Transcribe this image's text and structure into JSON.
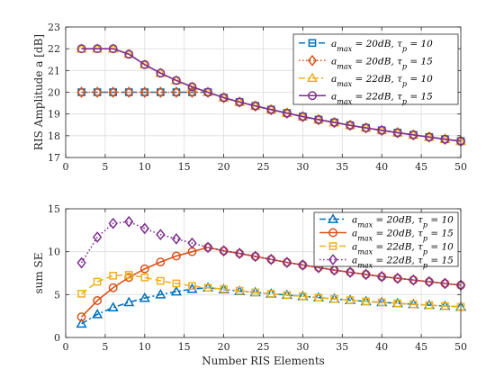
{
  "chart_data": [
    {
      "type": "line",
      "title": "",
      "xlabel": "",
      "ylabel": "RIS Amplitude a [dB]",
      "xlim": [
        0,
        50
      ],
      "ylim": [
        17,
        23
      ],
      "xticks": [
        0,
        5,
        10,
        15,
        20,
        25,
        30,
        35,
        40,
        45,
        50
      ],
      "yticks": [
        17,
        18,
        19,
        20,
        21,
        22,
        23
      ],
      "grid": true,
      "legend_position": "top-right",
      "x": [
        2,
        4,
        6,
        8,
        10,
        12,
        14,
        16,
        18,
        20,
        22,
        24,
        26,
        28,
        30,
        32,
        34,
        36,
        38,
        40,
        42,
        44,
        46,
        48,
        50
      ],
      "series": [
        {
          "name": "a_max = 20dB, τ_p = 10",
          "color": "#0072BD",
          "dash": "7 4",
          "marker": "square",
          "values": [
            20,
            20,
            20,
            20,
            20,
            20,
            20,
            20,
            20,
            19.75,
            19.55,
            19.37,
            19.2,
            19.04,
            18.88,
            18.74,
            18.61,
            18.48,
            18.36,
            18.25,
            18.14,
            18.04,
            17.94,
            17.84,
            17.75
          ]
        },
        {
          "name": "a_max = 20dB, τ_p = 15",
          "color": "#D95319",
          "dash": "1.5 2.5",
          "marker": "diamond",
          "values": [
            20,
            20,
            20,
            20,
            20,
            20,
            20,
            20,
            20,
            19.75,
            19.55,
            19.37,
            19.2,
            19.04,
            18.88,
            18.74,
            18.61,
            18.48,
            18.36,
            18.25,
            18.14,
            18.04,
            17.94,
            17.84,
            17.75
          ]
        },
        {
          "name": "a_max = 22dB, τ_p = 10",
          "color": "#EDB120",
          "dash": "7 3 2 3",
          "marker": "triangle",
          "values": [
            22,
            22,
            22,
            21.75,
            21.27,
            20.88,
            20.54,
            20.25,
            20,
            19.75,
            19.55,
            19.37,
            19.2,
            19.04,
            18.88,
            18.74,
            18.61,
            18.48,
            18.36,
            18.25,
            18.14,
            18.04,
            17.94,
            17.84,
            17.75
          ]
        },
        {
          "name": "a_max = 22dB, τ_p = 15",
          "color": "#7E2F8E",
          "dash": "",
          "marker": "circle",
          "values": [
            22,
            22,
            22,
            21.75,
            21.27,
            20.88,
            20.54,
            20.25,
            20,
            19.75,
            19.55,
            19.37,
            19.2,
            19.04,
            18.88,
            18.74,
            18.61,
            18.48,
            18.36,
            18.25,
            18.14,
            18.04,
            17.94,
            17.84,
            17.75
          ]
        }
      ]
    },
    {
      "type": "line",
      "title": "",
      "xlabel": "Number RIS Elements",
      "ylabel": "sum SE",
      "xlim": [
        0,
        50
      ],
      "ylim": [
        0,
        15
      ],
      "xticks": [
        0,
        5,
        10,
        15,
        20,
        25,
        30,
        35,
        40,
        45,
        50
      ],
      "yticks": [
        0,
        5,
        10,
        15
      ],
      "grid": true,
      "legend_position": "top-right",
      "x": [
        2,
        4,
        6,
        8,
        10,
        12,
        14,
        16,
        18,
        20,
        22,
        24,
        26,
        28,
        30,
        32,
        34,
        36,
        38,
        40,
        42,
        44,
        46,
        48,
        50
      ],
      "series": [
        {
          "name": "a_max = 20dB, τ_p = 10",
          "color": "#0072BD",
          "dash": "7 3 2 3",
          "marker": "triangle",
          "values": [
            1.6,
            2.7,
            3.5,
            4.1,
            4.6,
            5.0,
            5.35,
            5.65,
            5.8,
            5.6,
            5.4,
            5.25,
            5.1,
            4.95,
            4.8,
            4.65,
            4.5,
            4.35,
            4.2,
            4.1,
            3.98,
            3.87,
            3.77,
            3.67,
            3.57
          ]
        },
        {
          "name": "a_max = 20dB, τ_p = 15",
          "color": "#D95319",
          "dash": "",
          "marker": "circle",
          "values": [
            2.4,
            4.3,
            5.8,
            7.0,
            8.0,
            8.8,
            9.5,
            10.0,
            10.5,
            10.1,
            9.8,
            9.45,
            9.1,
            8.75,
            8.45,
            8.15,
            7.85,
            7.6,
            7.35,
            7.1,
            6.9,
            6.7,
            6.5,
            6.3,
            6.1
          ]
        },
        {
          "name": "a_max = 22dB, τ_p = 10",
          "color": "#EDB120",
          "dash": "7 4",
          "marker": "square",
          "values": [
            5.1,
            6.5,
            7.2,
            7.3,
            7.0,
            6.6,
            6.3,
            6.0,
            5.8,
            5.65,
            5.45,
            5.25,
            5.1,
            4.95,
            4.8,
            4.65,
            4.5,
            4.35,
            4.2,
            4.1,
            3.98,
            3.87,
            3.77,
            3.67,
            3.57
          ]
        },
        {
          "name": "a_max = 22dB, τ_p = 15",
          "color": "#7E2F8E",
          "dash": "1.5 2.5",
          "marker": "diamond",
          "values": [
            8.7,
            11.7,
            13.3,
            13.5,
            12.7,
            12.0,
            11.5,
            11.0,
            10.5,
            10.1,
            9.8,
            9.45,
            9.1,
            8.75,
            8.45,
            8.15,
            7.85,
            7.6,
            7.35,
            7.1,
            6.9,
            6.7,
            6.5,
            6.3,
            6.1
          ]
        }
      ]
    }
  ]
}
